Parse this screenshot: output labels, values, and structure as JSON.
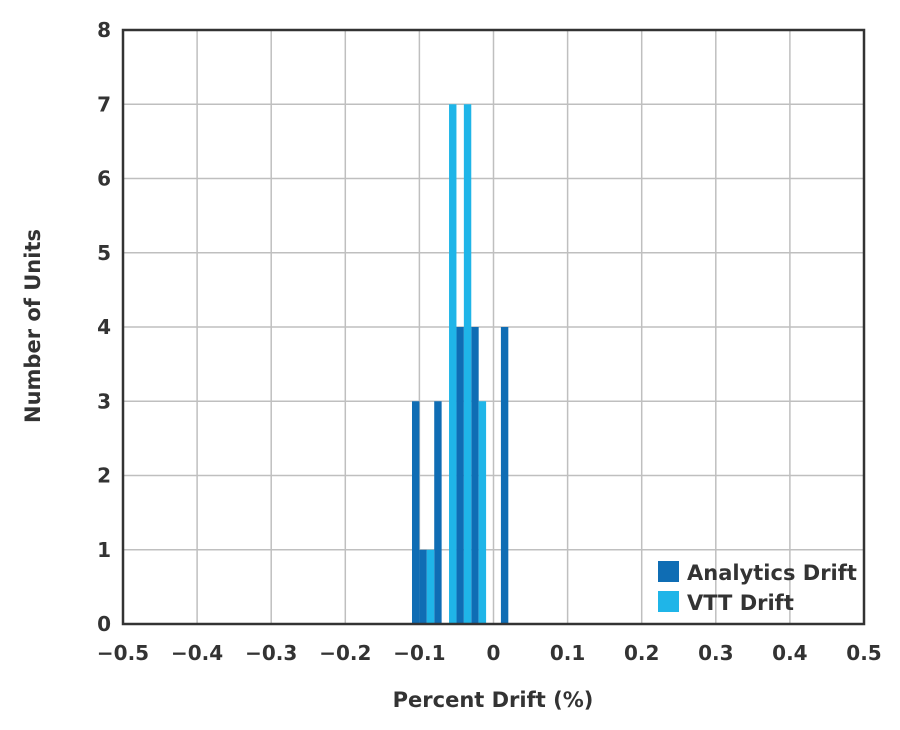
{
  "chart_data": {
    "type": "bar",
    "xlabel": "Percent Drift (%)",
    "ylabel": "Number of Units",
    "xlim": [
      -0.5,
      0.5
    ],
    "ylim": [
      0,
      8
    ],
    "x_ticks": [
      "−0.5",
      "−0.4",
      "−0.3",
      "−0.2",
      "−0.1",
      "0",
      "0.1",
      "0.2",
      "0.3",
      "0.4",
      "0.5"
    ],
    "y_ticks": [
      "0",
      "1",
      "2",
      "3",
      "4",
      "5",
      "6",
      "7",
      "8"
    ],
    "grid": true,
    "legend_position": "bottom-right",
    "bar_width": 0.01,
    "series": [
      {
        "name": "Analytics Drift",
        "color": "#0f6db4",
        "points": [
          {
            "x": -0.105,
            "y": 3
          },
          {
            "x": -0.095,
            "y": 1
          },
          {
            "x": -0.075,
            "y": 3
          },
          {
            "x": -0.045,
            "y": 4
          },
          {
            "x": -0.025,
            "y": 4
          },
          {
            "x": 0.015,
            "y": 4
          }
        ]
      },
      {
        "name": "VTT Drift",
        "color": "#1fb5e8",
        "points": [
          {
            "x": -0.085,
            "y": 1
          },
          {
            "x": -0.055,
            "y": 7
          },
          {
            "x": -0.035,
            "y": 7
          },
          {
            "x": -0.015,
            "y": 3
          }
        ]
      }
    ]
  }
}
